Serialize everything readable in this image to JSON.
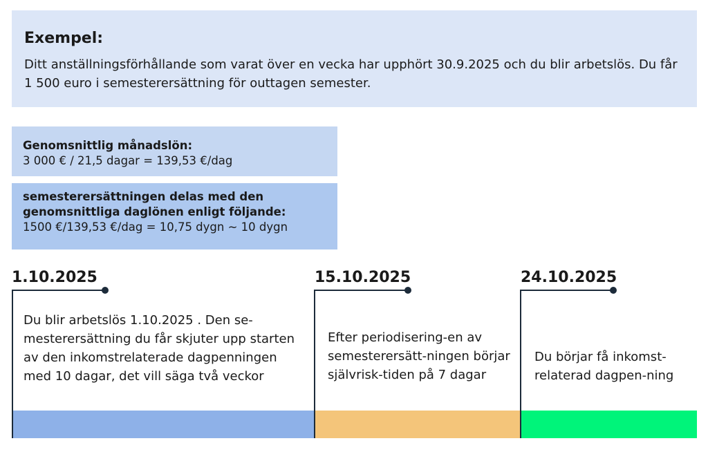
{
  "example": {
    "title": "Exempel:",
    "text": "Ditt anställningsförhållande som varat över en vecka har upphört 30.9.2025  och du blir arbetslös. Du får 1 500 euro i semesterersättning för outtagen semester."
  },
  "calc1": {
    "label": "Genomsnittlig månadslön:",
    "formula": "3 000 € / 21,5 dagar = 139,53 €/dag"
  },
  "calc2": {
    "label": "semesterersättningen delas med den genomsnittliga daglönen enligt följande:",
    "formula": "1500 €/139,53 €/dag = 10,75 dygn ~ 10 dygn"
  },
  "timeline": [
    {
      "date": "1.10.2025",
      "text": "Du blir arbetslös 1.10.2025 . Den se-mesterersättning du får skjuter upp starten av den inkomstrelaterade dagpenningen med 10 dagar, det vill säga två veckor",
      "color": "#8eb1e8"
    },
    {
      "date": "15.10.2025",
      "text": "Efter periodisering-en av semesterersätt-ningen börjar självrisk-tiden på 7 dagar",
      "color": "#f4c57a"
    },
    {
      "date": "24.10.2025",
      "text": "Du börjar få inkomst-relaterad dagpen-ning",
      "color": "#00f47a"
    }
  ],
  "colors": {
    "line": "#1c2b3a",
    "example_bg": "#dce6f7",
    "calc1_bg": "#c5d7f2",
    "calc2_bg": "#adc8ef"
  }
}
